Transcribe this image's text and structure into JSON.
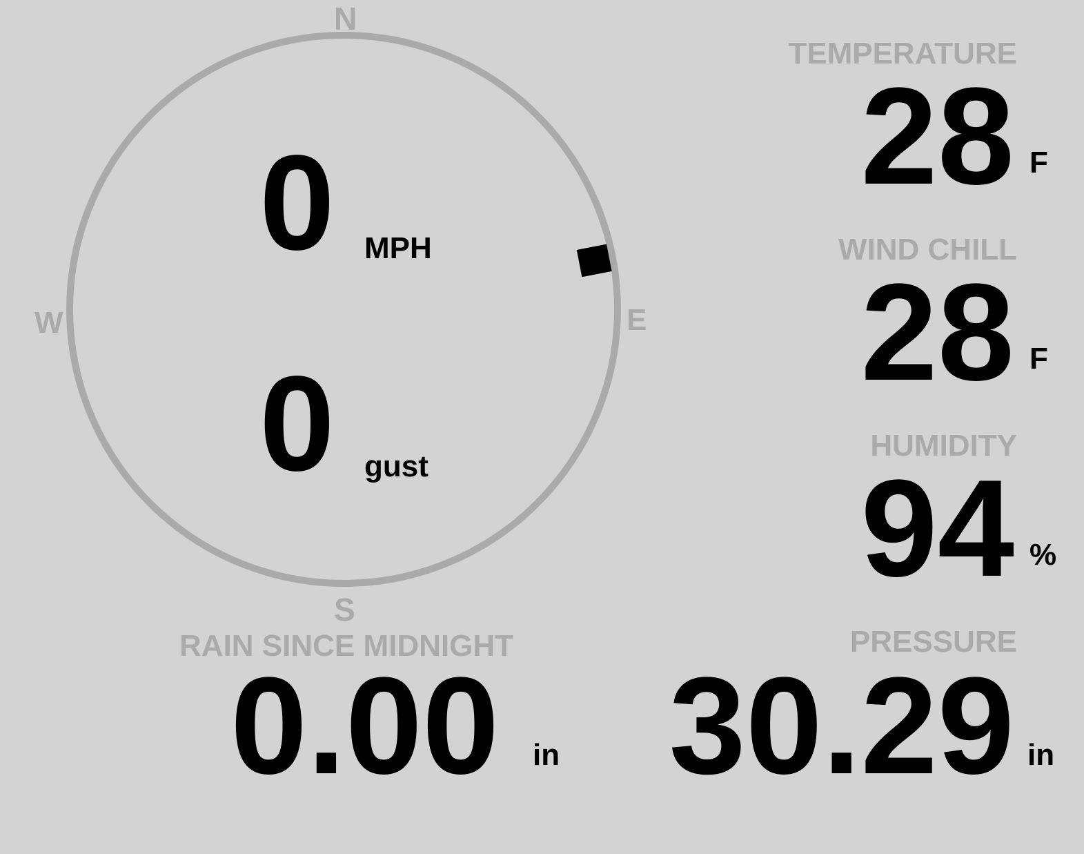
{
  "colors": {
    "background": "#d3d3d3",
    "label": "#aaaaaa",
    "value": "#000000"
  },
  "compass": {
    "north": "N",
    "south": "S",
    "east": "E",
    "west": "W",
    "wind_direction_deg": 79
  },
  "wind": {
    "speed": "0",
    "speed_unit": "MPH",
    "gust": "0",
    "gust_unit": "gust"
  },
  "temperature": {
    "label": "TEMPERATURE",
    "value": "28",
    "unit": "F"
  },
  "wind_chill": {
    "label": "WIND CHILL",
    "value": "28",
    "unit": "F"
  },
  "humidity": {
    "label": "HUMIDITY",
    "value": "94",
    "unit": "%"
  },
  "rain": {
    "label": "RAIN SINCE MIDNIGHT",
    "value": "0.00",
    "unit": "in"
  },
  "pressure": {
    "label": "PRESSURE",
    "value": "30.29",
    "unit": "in"
  }
}
